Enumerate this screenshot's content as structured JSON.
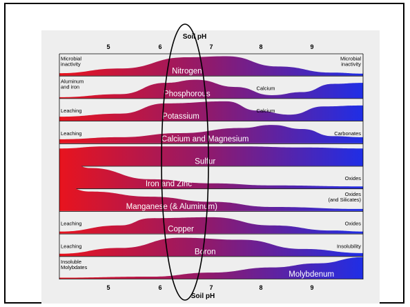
{
  "axis": {
    "label": "Soil pH",
    "ticks": [
      "5",
      "6",
      "7",
      "8",
      "9"
    ]
  },
  "rows": [
    {
      "nutrient": "Nitrogen",
      "left": [
        "Microbial",
        "inactivity"
      ],
      "right": [
        "Microbial",
        "inactivity"
      ]
    },
    {
      "nutrient": "Phosphorous",
      "left": [
        "Aluminum",
        "and iron"
      ],
      "right": [],
      "mid": [
        "Calcium"
      ]
    },
    {
      "nutrient": "Potassium",
      "left": [
        "Leaching"
      ],
      "right": [],
      "mid": [
        "Calcium"
      ]
    },
    {
      "nutrient": "Calcium and Magnesium",
      "left": [
        "Leaching"
      ],
      "right": [
        "Carbonates"
      ]
    },
    {
      "nutrient": "Sulfur",
      "left": [],
      "right": []
    },
    {
      "nutrient": "Iron and Zinc",
      "left": [],
      "right": [
        "Oxides"
      ]
    },
    {
      "nutrient": "Manganese (& Aluminum)",
      "left": [],
      "right": [
        "Oxides",
        "(and Silicates)"
      ]
    },
    {
      "nutrient": "Copper",
      "left": [
        "Leaching"
      ],
      "right": [
        "Oxides"
      ]
    },
    {
      "nutrient": "Boron",
      "left": [
        "Leaching"
      ],
      "right": [
        "Insolubility"
      ]
    },
    {
      "nutrient": "Molybdenum",
      "left": [
        "Insoluble",
        "Molybdates"
      ],
      "right": []
    }
  ],
  "colors": {
    "acid": "#e8141e",
    "neutral": "#8e1a6e",
    "alkaline": "#1f2ee6",
    "highlight": "#000000"
  }
}
